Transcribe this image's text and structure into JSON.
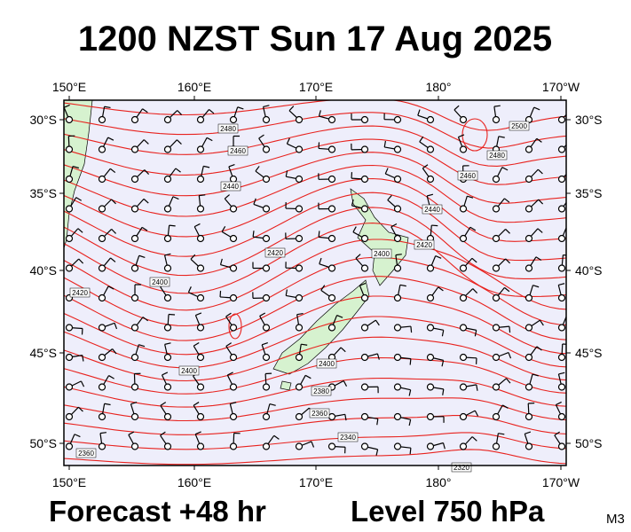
{
  "header": {
    "title": "1200 NZST Sun 17 Aug 2025"
  },
  "map": {
    "longitude_labels": [
      "150°E",
      "160°E",
      "170°E",
      "180°",
      "170°W"
    ],
    "latitude_labels": [
      "30°S",
      "35°S",
      "40°S",
      "45°S",
      "50°S"
    ],
    "contour_labels": [
      "2480",
      "2460",
      "2440",
      "2420",
      "2400",
      "2420",
      "2400",
      "2400",
      "2380",
      "2360",
      "2340",
      "2360",
      "2320",
      "2500",
      "2480",
      "2460",
      "2440",
      "2420",
      "2400"
    ]
  },
  "footer": {
    "forecast": "Forecast +48 hr",
    "level": "Level 750 hPa",
    "model": "M3"
  }
}
